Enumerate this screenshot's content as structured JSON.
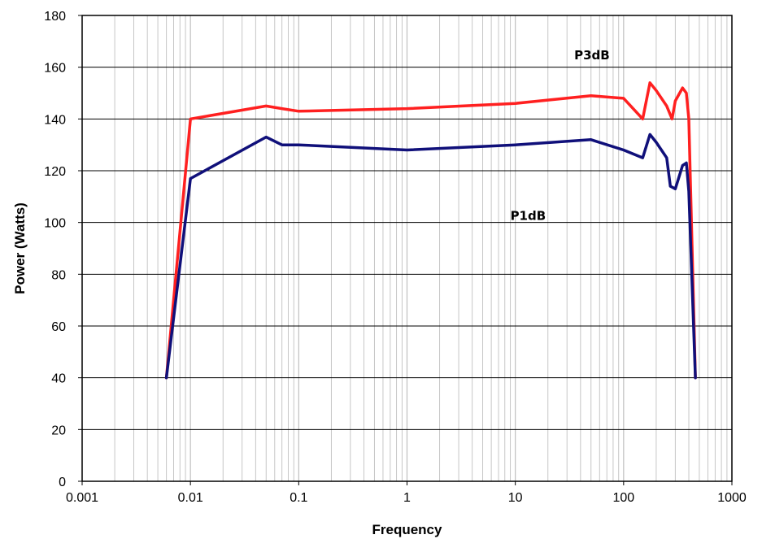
{
  "chart_data": {
    "type": "line",
    "title": "",
    "xlabel": "Frequency",
    "ylabel": "Power (Watts)",
    "x_scale": "log",
    "xlim": [
      0.001,
      1000
    ],
    "ylim": [
      0,
      180
    ],
    "x_ticks": [
      0.001,
      0.01,
      0.1,
      1,
      10,
      100,
      1000
    ],
    "x_tick_labels": [
      "0.001",
      "0.01",
      "0.1",
      "1",
      "10",
      "100",
      "1000"
    ],
    "y_ticks": [
      0,
      20,
      40,
      60,
      80,
      100,
      120,
      140,
      160,
      180
    ],
    "y_tick_labels": [
      "0",
      "20",
      "40",
      "60",
      "80",
      "100",
      "120",
      "140",
      "160",
      "180"
    ],
    "grid": {
      "x_major_and_minor": true,
      "y_major": true
    },
    "colors": {
      "p3db": "#ff2020",
      "p1db": "#10107a",
      "grid": "#c0c0c0",
      "axis": "#000000"
    },
    "series": [
      {
        "name": "P3dB",
        "color": "#ff2020",
        "x": [
          0.006,
          0.01,
          0.05,
          0.07,
          0.1,
          1,
          10,
          50,
          100,
          150,
          175,
          200,
          250,
          280,
          300,
          350,
          380,
          400,
          460
        ],
        "y": [
          40,
          140,
          145,
          144,
          143,
          144,
          146,
          149,
          148,
          140,
          154,
          151,
          145,
          140,
          147,
          152,
          150,
          140,
          40
        ]
      },
      {
        "name": "P1dB",
        "color": "#10107a",
        "x": [
          0.006,
          0.01,
          0.05,
          0.07,
          0.1,
          1,
          10,
          50,
          100,
          150,
          175,
          200,
          250,
          270,
          300,
          350,
          380,
          400,
          460
        ],
        "y": [
          40,
          117,
          133,
          130,
          130,
          128,
          130,
          132,
          128,
          125,
          134,
          131,
          125,
          114,
          113,
          122,
          123,
          112,
          40
        ]
      }
    ],
    "annotations": [
      {
        "text": "P3dB",
        "x": 35,
        "y": 163
      },
      {
        "text": "P1dB",
        "x": 9,
        "y": 101
      }
    ]
  }
}
